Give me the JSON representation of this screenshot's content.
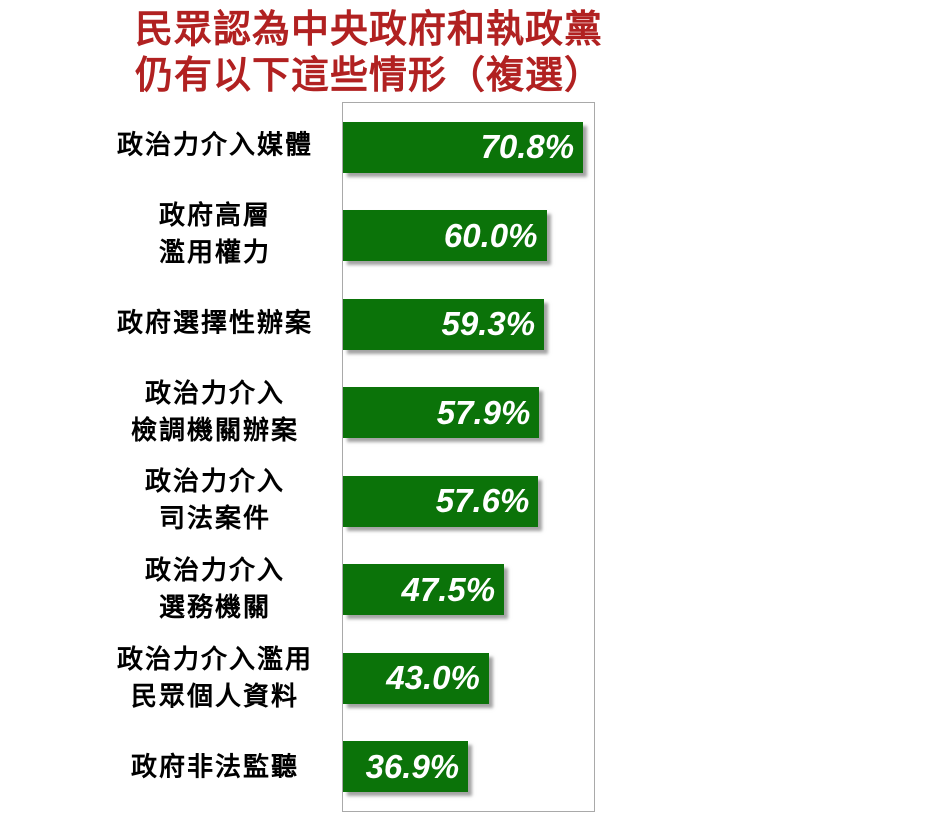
{
  "title": {
    "lines": [
      "民眾認為中央政府和執政黨",
      "仍有以下這些情形（複選）"
    ],
    "color": "#B12121"
  },
  "chart_data": {
    "type": "bar",
    "orientation": "horizontal",
    "title": "民眾認為中央政府和執政黨仍有以下這些情形（複選）",
    "categories": [
      "政治力介入媒體",
      "政府高層濫用權力",
      "政府選擇性辦案",
      "政治力介入檢調機關辦案",
      "政治力介入司法案件",
      "政治力介入選務機關",
      "政治力介入濫用民眾個人資料",
      "政府非法監聽"
    ],
    "category_lines": [
      [
        "政治力介入媒體"
      ],
      [
        "政府高層",
        "濫用權力"
      ],
      [
        "政府選擇性辦案"
      ],
      [
        "政治力介入",
        "檢調機關辦案"
      ],
      [
        "政治力介入",
        "司法案件"
      ],
      [
        "政治力介入",
        "選務機關"
      ],
      [
        "政治力介入濫用",
        "民眾個人資料"
      ],
      [
        "政府非法監聽"
      ]
    ],
    "values": [
      70.8,
      60.0,
      59.3,
      57.9,
      57.6,
      47.5,
      43.0,
      36.9
    ],
    "value_labels": [
      "70.8%",
      "60.0%",
      "59.3%",
      "57.9%",
      "57.6%",
      "47.5%",
      "43.0%",
      "36.9%"
    ],
    "xlabel": "",
    "ylabel": "",
    "xlim": [
      0,
      74
    ],
    "grid": false,
    "legend": false,
    "bar_color": "#0B7309",
    "value_label_color": "#FFFFFF",
    "category_label_color": "#000000",
    "plot_border_color": "#A9A9A9"
  }
}
